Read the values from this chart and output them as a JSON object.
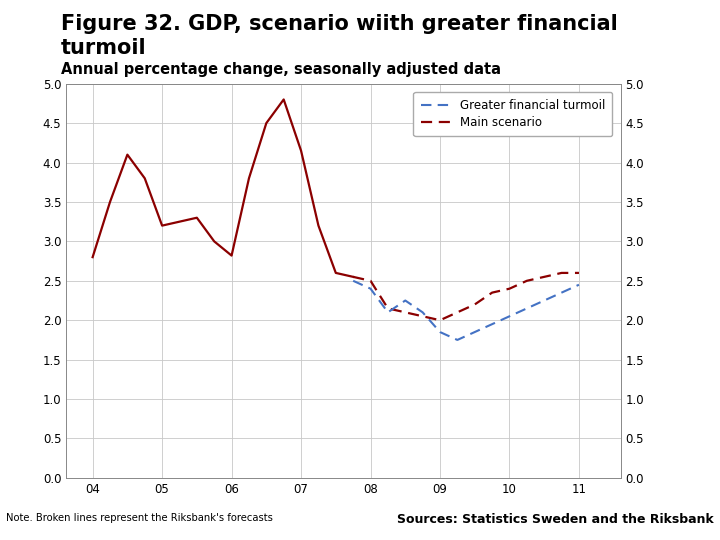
{
  "title_line1": "Figure 32. GDP, scenario wiith greater financial",
  "title_line2": "turmoil",
  "subtitle": "Annual percentage change, seasonally adjusted data",
  "title_fontsize": 15,
  "subtitle_fontsize": 10.5,
  "ylim": [
    0.0,
    5.0
  ],
  "yticks": [
    0.0,
    0.5,
    1.0,
    1.5,
    2.0,
    2.5,
    3.0,
    3.5,
    4.0,
    4.5,
    5.0
  ],
  "xlabel_ticks": [
    "04",
    "05",
    "06",
    "07",
    "08",
    "09",
    "10",
    "11"
  ],
  "background_color": "#ffffff",
  "grid_color": "#c8c8c8",
  "footer_bar_color": "#1B3A6B",
  "main_line_color": "#8B0000",
  "turmoil_line_color": "#4472C4",
  "main_solid_x": [
    2004.0,
    2004.25,
    2004.5,
    2004.75,
    2005.0,
    2005.25,
    2005.5,
    2005.75,
    2006.0,
    2006.25,
    2006.5,
    2006.75,
    2007.0,
    2007.25,
    2007.5,
    2007.75
  ],
  "main_solid_y": [
    2.8,
    3.5,
    4.1,
    3.8,
    3.2,
    3.25,
    3.3,
    3.0,
    2.82,
    3.8,
    4.5,
    4.8,
    4.15,
    3.2,
    2.6,
    2.55
  ],
  "main_dash_x": [
    2007.75,
    2008.0,
    2008.25,
    2008.5,
    2008.75,
    2009.0,
    2009.25,
    2009.5,
    2009.75,
    2010.0,
    2010.25,
    2010.5,
    2010.75,
    2011.0
  ],
  "main_dash_y": [
    2.55,
    2.5,
    2.15,
    2.1,
    2.05,
    2.0,
    2.1,
    2.2,
    2.35,
    2.4,
    2.5,
    2.55,
    2.6,
    2.6
  ],
  "turmoil_x": [
    2007.75,
    2008.0,
    2008.25,
    2008.5,
    2008.75,
    2009.0,
    2009.25,
    2009.5,
    2009.75,
    2010.0,
    2010.25,
    2010.5,
    2010.75,
    2011.0
  ],
  "turmoil_y": [
    2.5,
    2.4,
    2.1,
    2.25,
    2.1,
    1.85,
    1.75,
    1.85,
    1.95,
    2.05,
    2.15,
    2.25,
    2.35,
    2.45
  ],
  "note_text": "Note. Broken lines represent the Riksbank's forecasts",
  "sources_text": "Sources: Statistics Sweden and the Riksbank",
  "legend_labels": [
    "Greater financial turmoil",
    "Main scenario"
  ],
  "xlim_left": 2003.62,
  "xlim_right": 2011.6
}
